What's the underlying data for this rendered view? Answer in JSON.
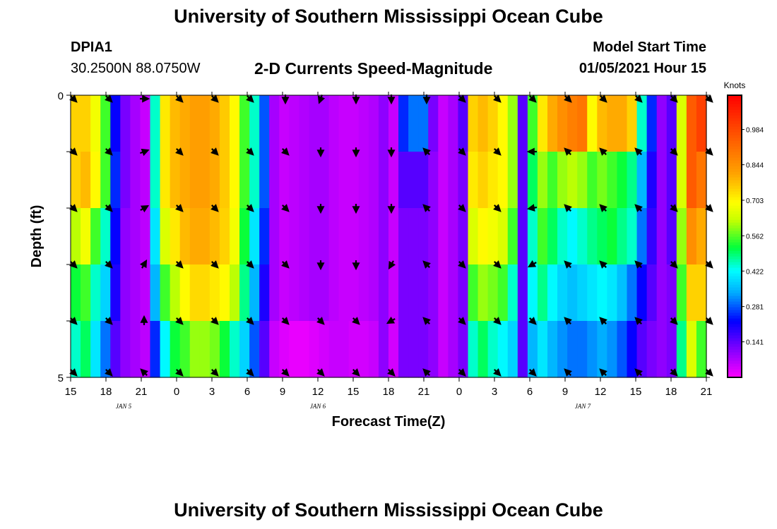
{
  "header": {
    "title": "University of Southern Mississippi Ocean Cube",
    "station_id": "DPIA1",
    "station_coords": "30.2500N 88.0750W",
    "chart_title": "2-D Currents Speed-Magnitude",
    "start_label": "Model Start Time",
    "start_value": "01/05/2021 Hour 15"
  },
  "footer": {
    "title": "University of Southern Mississippi Ocean Cube"
  },
  "chart_data": {
    "type": "heatmap",
    "title": "2-D Currents Speed-Magnitude",
    "xlabel": "Forecast Time(Z)",
    "ylabel": "Depth (ft)",
    "x_hours": [
      0,
      54
    ],
    "y_range": [
      0,
      5
    ],
    "x_ticks": [
      "15",
      "18",
      "21",
      "0",
      "3",
      "6",
      "9",
      "12",
      "15",
      "18",
      "21",
      "0",
      "3",
      "6",
      "9",
      "12",
      "15",
      "18",
      "21"
    ],
    "y_tick_labels": [
      "0",
      "5"
    ],
    "date_labels": [
      {
        "text": "JAN 5",
        "hour": 4.5
      },
      {
        "text": "JAN 6",
        "hour": 21
      },
      {
        "text": "JAN 7",
        "hour": 43.5
      }
    ],
    "colorbar": {
      "units": "Knots",
      "ticks": [
        "0.141",
        "0.281",
        "0.422",
        "0.562",
        "0.703",
        "0.844",
        "0.984"
      ],
      "min": 0.0,
      "max": 1.12
    },
    "depth_layers": 5,
    "speed_knots": [
      [
        0.75,
        0.75,
        0.68,
        0.55,
        0.22,
        0.12,
        0.08,
        0.05,
        0.45,
        0.72,
        0.78,
        0.8,
        0.82,
        0.82,
        0.8,
        0.76,
        0.7,
        0.55,
        0.45,
        0.28,
        0.08,
        0.05,
        0.06,
        0.07,
        0.08,
        0.08,
        0.06,
        0.05,
        0.05,
        0.06,
        0.07,
        0.1,
        0.05,
        0.25,
        0.3,
        0.3,
        0.12,
        0.05,
        0.08,
        0.15,
        0.75,
        0.78,
        0.75,
        0.7,
        0.6,
        0.15,
        0.55,
        0.72,
        0.8,
        0.85,
        0.88,
        0.9,
        0.7,
        0.78,
        0.8,
        0.8,
        0.75,
        0.45,
        0.25,
        0.1,
        0.15,
        0.65,
        0.95,
        1.0
      ],
      [
        0.75,
        0.78,
        0.7,
        0.55,
        0.25,
        0.12,
        0.08,
        0.06,
        0.45,
        0.72,
        0.78,
        0.8,
        0.82,
        0.82,
        0.8,
        0.76,
        0.7,
        0.55,
        0.45,
        0.28,
        0.08,
        0.05,
        0.06,
        0.07,
        0.08,
        0.08,
        0.06,
        0.05,
        0.05,
        0.06,
        0.07,
        0.1,
        0.05,
        0.15,
        0.15,
        0.15,
        0.1,
        0.05,
        0.08,
        0.12,
        0.72,
        0.75,
        0.72,
        0.7,
        0.6,
        0.15,
        0.5,
        0.6,
        0.55,
        0.6,
        0.62,
        0.6,
        0.55,
        0.58,
        0.55,
        0.52,
        0.48,
        0.35,
        0.2,
        0.1,
        0.15,
        0.65,
        0.95,
        0.9
      ],
      [
        0.62,
        0.68,
        0.55,
        0.45,
        0.22,
        0.1,
        0.08,
        0.06,
        0.4,
        0.65,
        0.72,
        0.78,
        0.8,
        0.8,
        0.78,
        0.75,
        0.68,
        0.52,
        0.4,
        0.25,
        0.08,
        0.05,
        0.06,
        0.07,
        0.08,
        0.08,
        0.06,
        0.05,
        0.05,
        0.06,
        0.07,
        0.1,
        0.05,
        0.12,
        0.12,
        0.12,
        0.1,
        0.05,
        0.08,
        0.12,
        0.65,
        0.7,
        0.68,
        0.65,
        0.55,
        0.15,
        0.45,
        0.55,
        0.5,
        0.45,
        0.42,
        0.45,
        0.48,
        0.5,
        0.52,
        0.48,
        0.45,
        0.3,
        0.18,
        0.1,
        0.15,
        0.6,
        0.85,
        0.8
      ],
      [
        0.52,
        0.55,
        0.45,
        0.38,
        0.2,
        0.1,
        0.08,
        0.06,
        0.35,
        0.55,
        0.62,
        0.7,
        0.74,
        0.74,
        0.72,
        0.7,
        0.62,
        0.48,
        0.35,
        0.2,
        0.08,
        0.05,
        0.06,
        0.07,
        0.08,
        0.08,
        0.06,
        0.05,
        0.05,
        0.06,
        0.07,
        0.1,
        0.05,
        0.12,
        0.12,
        0.12,
        0.1,
        0.05,
        0.08,
        0.12,
        0.55,
        0.6,
        0.58,
        0.55,
        0.45,
        0.15,
        0.42,
        0.48,
        0.42,
        0.38,
        0.36,
        0.38,
        0.4,
        0.42,
        0.4,
        0.36,
        0.3,
        0.22,
        0.15,
        0.1,
        0.12,
        0.55,
        0.75,
        0.75
      ],
      [
        0.45,
        0.5,
        0.4,
        0.3,
        0.15,
        0.1,
        0.08,
        0.06,
        0.25,
        0.42,
        0.52,
        0.55,
        0.6,
        0.6,
        0.58,
        0.52,
        0.45,
        0.38,
        0.28,
        0.15,
        0.05,
        0.03,
        0.02,
        0.02,
        0.03,
        0.04,
        0.05,
        0.05,
        0.04,
        0.04,
        0.05,
        0.1,
        0.04,
        0.12,
        0.12,
        0.12,
        0.1,
        0.05,
        0.08,
        0.12,
        0.45,
        0.5,
        0.45,
        0.42,
        0.38,
        0.15,
        0.35,
        0.4,
        0.35,
        0.32,
        0.3,
        0.3,
        0.32,
        0.34,
        0.32,
        0.28,
        0.22,
        0.15,
        0.12,
        0.1,
        0.12,
        0.48,
        0.65,
        0.55
      ]
    ],
    "arrow_hours": [
      0,
      3,
      6,
      9,
      12,
      15,
      18,
      21,
      24,
      27,
      30,
      33,
      36,
      39,
      42,
      45,
      48,
      51,
      54
    ],
    "arrow_depths": [
      0,
      1,
      2,
      3,
      4,
      5
    ],
    "arrow_directions_deg": [
      [
        135,
        135,
        90,
        135,
        135,
        135,
        180,
        200,
        180,
        180,
        180,
        135,
        135,
        135,
        135,
        135,
        135,
        135,
        135
      ],
      [
        135,
        135,
        70,
        135,
        135,
        135,
        135,
        180,
        180,
        180,
        315,
        135,
        135,
        270,
        315,
        315,
        315,
        135,
        135
      ],
      [
        135,
        135,
        60,
        135,
        135,
        135,
        135,
        180,
        180,
        180,
        315,
        135,
        135,
        260,
        315,
        315,
        315,
        135,
        135
      ],
      [
        135,
        135,
        30,
        135,
        135,
        135,
        135,
        180,
        180,
        210,
        315,
        135,
        135,
        240,
        315,
        315,
        315,
        135,
        135
      ],
      [
        135,
        135,
        0,
        135,
        135,
        135,
        135,
        135,
        135,
        240,
        315,
        135,
        135,
        135,
        315,
        315,
        315,
        135,
        135
      ],
      [
        135,
        135,
        315,
        135,
        135,
        135,
        135,
        135,
        135,
        135,
        315,
        135,
        135,
        135,
        315,
        315,
        315,
        135,
        135
      ]
    ]
  }
}
